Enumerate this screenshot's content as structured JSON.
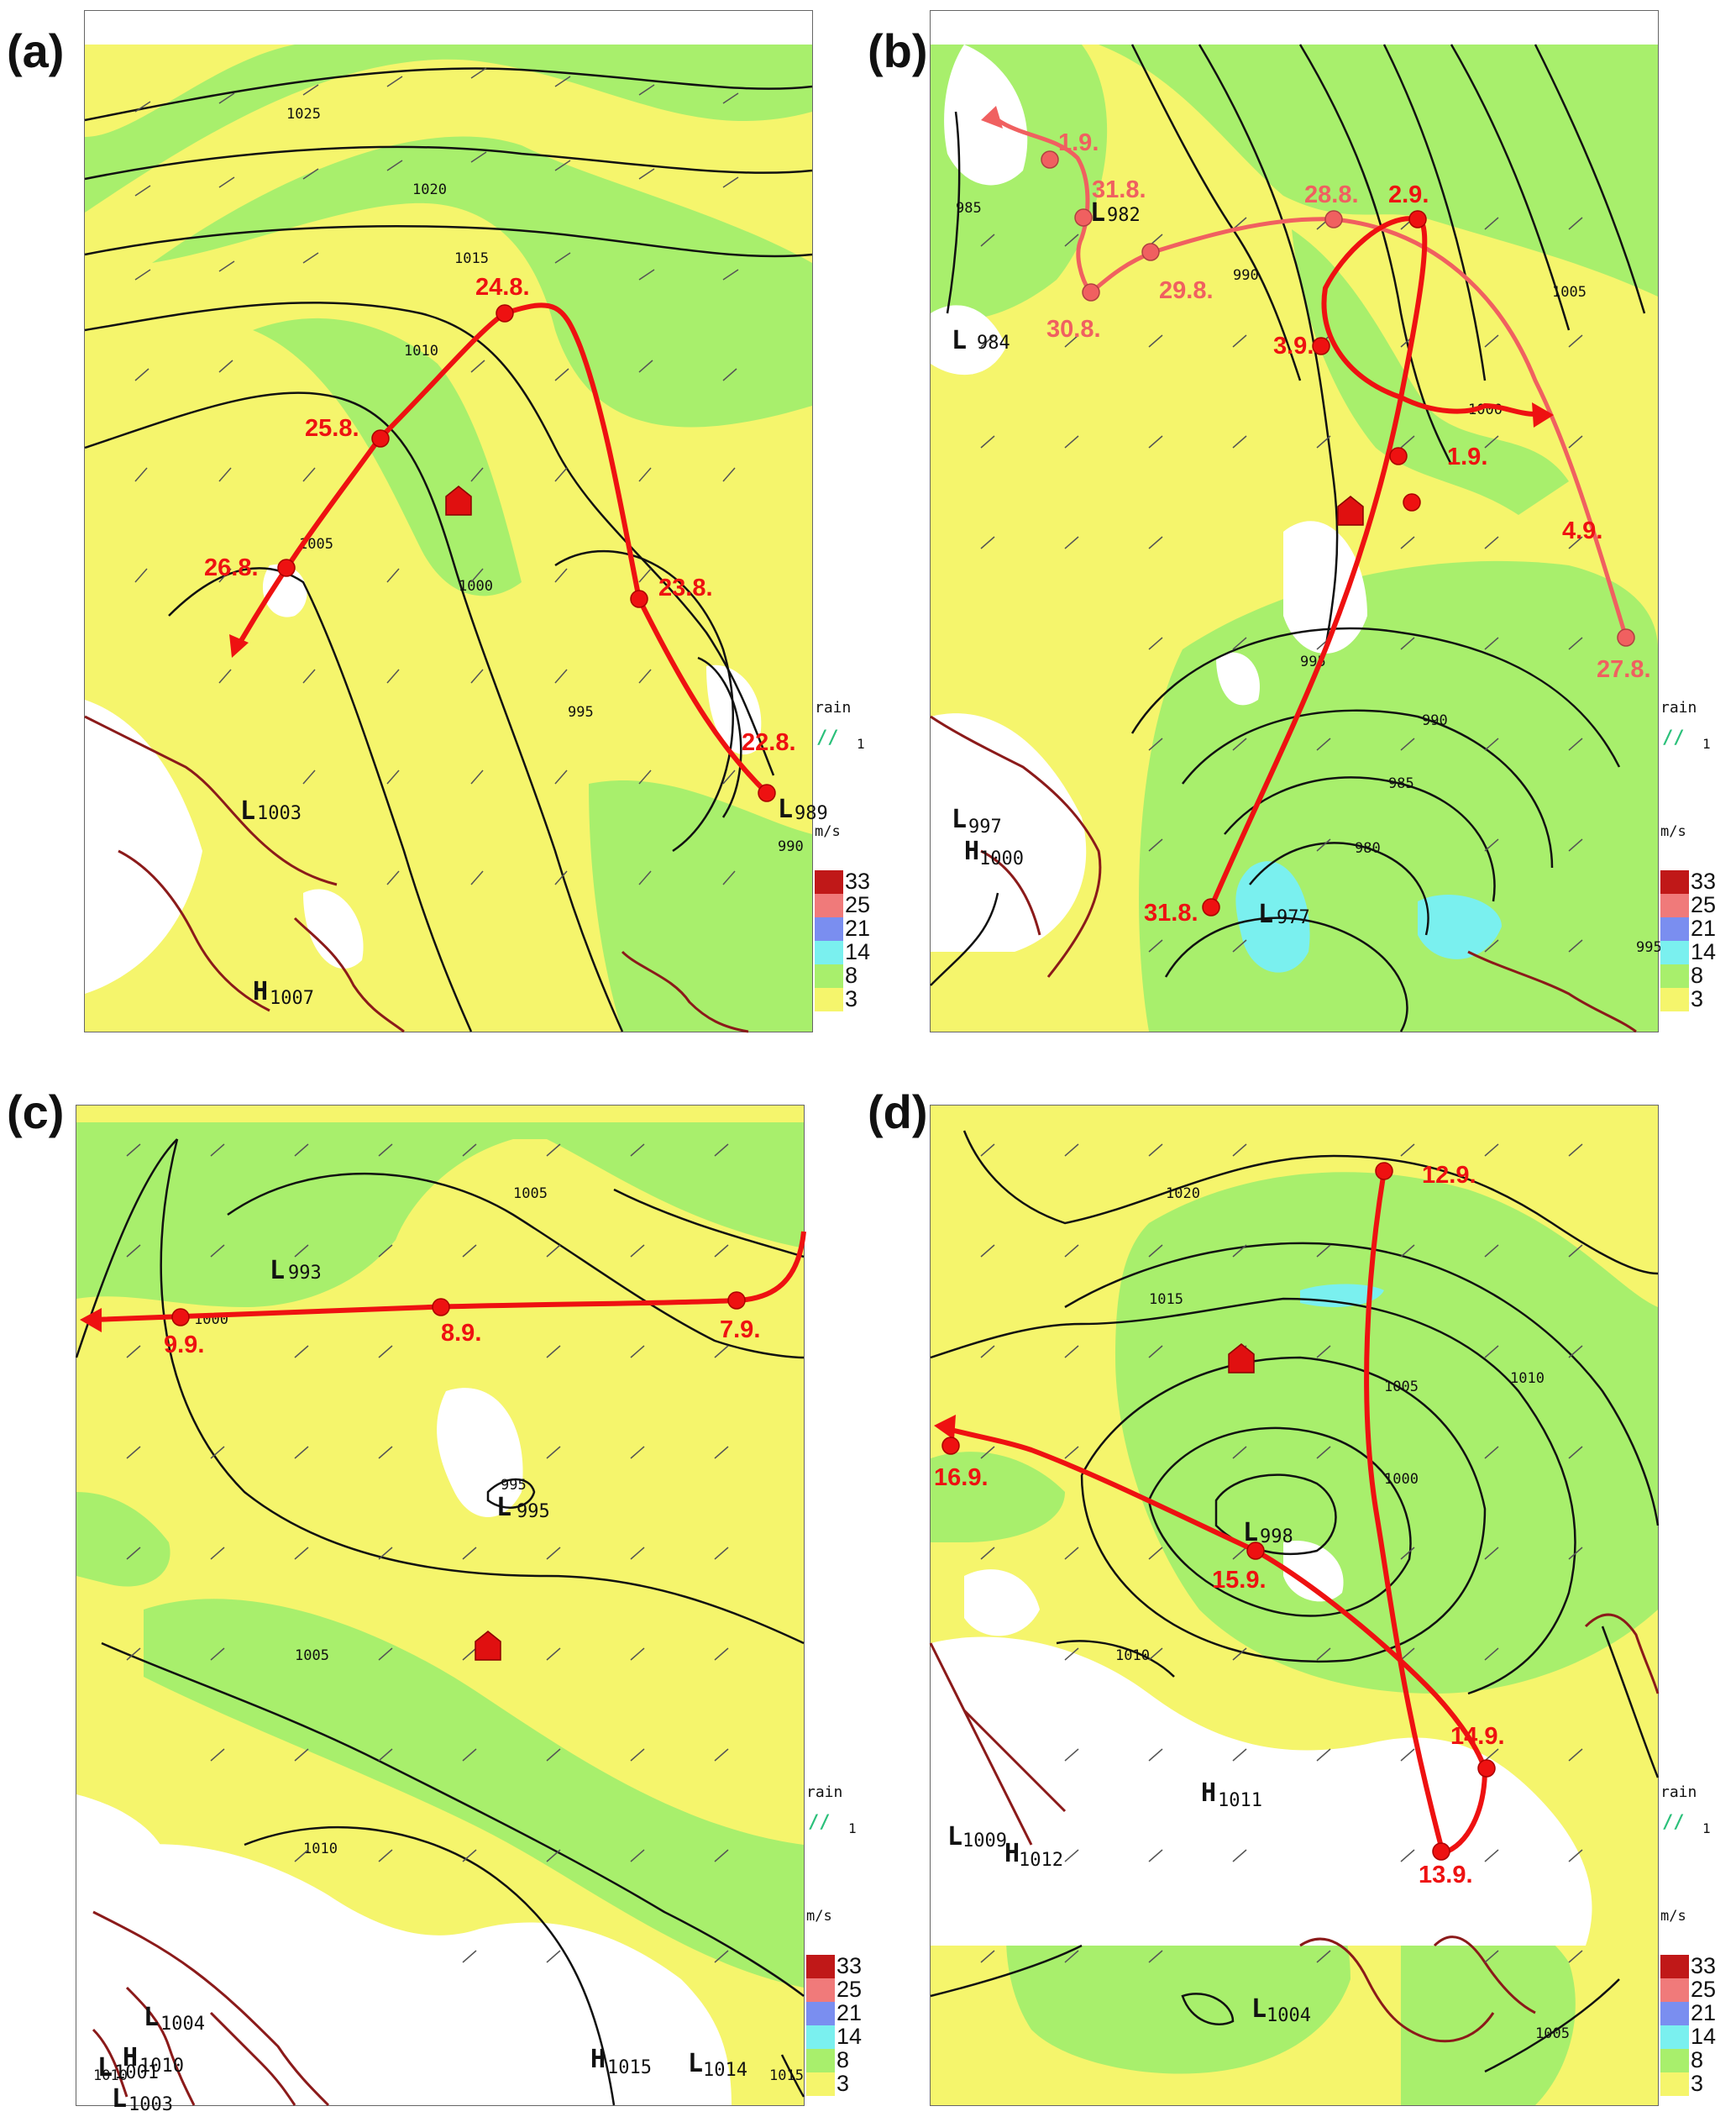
{
  "colors": {
    "wind_3": "#f5f56c",
    "wind_8": "#a8ef6c",
    "wind_14": "#7af0ef",
    "wind_21": "#7a8ef0",
    "wind_25": "#f07a7a",
    "wind_33": "#c01818",
    "track_main": "#ee1111",
    "track_secondary": "#f06060",
    "isobar": "#111111",
    "coast": "#8b1a1a"
  },
  "legend": {
    "rain_label": "rain",
    "rain_value": "1",
    "unit": "m/s",
    "values": [
      "33",
      "25",
      "21",
      "14",
      "8",
      "3"
    ]
  },
  "panels": [
    {
      "label": "(a)",
      "track_labels": [
        "22.8.",
        "23.8.",
        "24.8.",
        "25.8.",
        "26.8."
      ],
      "pressure_labels": [
        "L",
        "989",
        "L",
        "1003",
        "H",
        "1007"
      ],
      "isobar_labels": [
        "1025",
        "1020",
        "1015",
        "1010",
        "1005",
        "1000",
        "995",
        "990"
      ]
    },
    {
      "label": "(b)",
      "track_labels": [
        "27.8.",
        "28.8.",
        "29.8.",
        "30.8.",
        "31.8.",
        "1.9.",
        "31.8.",
        "1.9.",
        "2.9.",
        "3.9.",
        "4.9."
      ],
      "pressure_labels": [
        "L",
        "982",
        "L",
        "984",
        "L",
        "997",
        "H",
        "1000",
        "L",
        "977"
      ],
      "isobar_labels": [
        "985",
        "990",
        "995",
        "1000",
        "1005",
        "990",
        "985",
        "980",
        "995"
      ]
    },
    {
      "label": "(c)",
      "track_labels": [
        "7.9.",
        "8.9.",
        "9.9."
      ],
      "pressure_labels": [
        "L",
        "993",
        "L",
        "995",
        "995",
        "L",
        "1004",
        "H",
        "1010",
        "L",
        "1001",
        "L",
        "1003",
        "H",
        "1015",
        "L",
        "1014"
      ],
      "isobar_labels": [
        "1005",
        "1000",
        "1005",
        "1010",
        "1010",
        "1015"
      ]
    },
    {
      "label": "(d)",
      "track_labels": [
        "12.9.",
        "13.9.",
        "14.9.",
        "15.9.",
        "16.9."
      ],
      "pressure_labels": [
        "L",
        "998",
        "H",
        "1011",
        "L",
        "1009",
        "H",
        "1012",
        "L",
        "1004"
      ],
      "isobar_labels": [
        "1020",
        "1015",
        "1010",
        "1005",
        "1000",
        "1010",
        "1005"
      ]
    }
  ]
}
